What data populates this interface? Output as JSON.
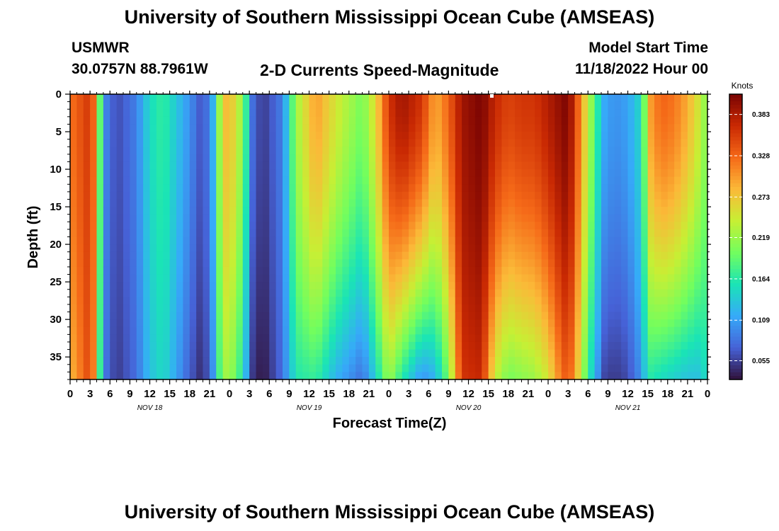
{
  "title": "University of Southern Mississippi Ocean Cube (AMSEAS)",
  "footer_title": "University of Southern Mississippi Ocean Cube (AMSEAS)",
  "station": "USMWR",
  "location": "30.0757N  88.7961W",
  "model_start_label": "Model Start Time",
  "model_start_value": "11/18/2022 Hour 00",
  "chart_data": {
    "type": "heatmap",
    "title": "2-D Currents Speed-Magnitude",
    "xlabel": "Forecast Time(Z)",
    "ylabel": "Depth (ft)",
    "colorbar_label": "Knots",
    "colorbar_ticks": [
      "0.055",
      "0.109",
      "0.164",
      "0.219",
      "0.273",
      "0.328",
      "0.383"
    ],
    "colorbar_range": [
      0.03,
      0.41
    ],
    "x_range_hours": [
      0,
      96
    ],
    "x_tick_labels": [
      "0",
      "3",
      "6",
      "9",
      "12",
      "15",
      "18",
      "21",
      "0",
      "3",
      "6",
      "9",
      "12",
      "15",
      "18",
      "21",
      "0",
      "3",
      "6",
      "9",
      "12",
      "15",
      "18",
      "21",
      "0",
      "3",
      "6",
      "9",
      "12",
      "15",
      "18",
      "21",
      "0"
    ],
    "date_labels": [
      "NOV 18",
      "NOV 19",
      "NOV 20",
      "NOV 21"
    ],
    "y_range": [
      0,
      38
    ],
    "y_ticks": [
      0,
      5,
      10,
      15,
      20,
      25,
      30,
      35
    ],
    "y_inverted": true,
    "colormap": [
      "#30123b",
      "#4662d7",
      "#36aaf9",
      "#1ae4b6",
      "#72fe5e",
      "#c7ef34",
      "#fbb938",
      "#f56918",
      "#c92903",
      "#7a0403"
    ],
    "grid": false,
    "surface_speed_profile": {
      "hour": [
        0,
        3,
        4,
        4.5,
        5.5,
        7,
        10,
        12,
        14,
        18,
        20,
        21.5,
        22.5,
        23.5,
        25,
        26.5,
        27.5,
        29,
        32,
        34,
        37,
        40,
        44,
        46,
        48,
        50,
        53,
        55,
        57,
        59,
        62,
        64,
        66,
        68,
        70,
        72,
        74,
        75,
        76,
        78,
        79.5,
        80,
        82,
        84,
        85.5,
        86.5,
        87.5,
        89,
        91,
        93,
        95,
        96
      ],
      "speed": [
        0.32,
        0.36,
        0.3,
        0.19,
        0.09,
        0.06,
        0.09,
        0.15,
        0.17,
        0.1,
        0.06,
        0.12,
        0.22,
        0.28,
        0.26,
        0.17,
        0.08,
        0.05,
        0.09,
        0.22,
        0.3,
        0.25,
        0.2,
        0.26,
        0.36,
        0.39,
        0.36,
        0.29,
        0.33,
        0.39,
        0.41,
        0.37,
        0.35,
        0.36,
        0.36,
        0.38,
        0.4,
        0.41,
        0.36,
        0.24,
        0.16,
        0.12,
        0.1,
        0.11,
        0.14,
        0.2,
        0.3,
        0.33,
        0.32,
        0.29,
        0.24,
        0.2
      ]
    },
    "bottom_speed_profile": {
      "hour": [
        0,
        3,
        4,
        4.5,
        5.5,
        7,
        10,
        12,
        14,
        18,
        20,
        21.5,
        22.5,
        23.5,
        25,
        26.5,
        27.5,
        29,
        32,
        34,
        37,
        40,
        44,
        46,
        48,
        50,
        53,
        55,
        57,
        59,
        62,
        64,
        66,
        68,
        70,
        72,
        74,
        75,
        76,
        78,
        79.5,
        80,
        82,
        84,
        85.5,
        86.5,
        87.5,
        89,
        91,
        93,
        95,
        96
      ],
      "speed": [
        0.28,
        0.35,
        0.28,
        0.17,
        0.08,
        0.05,
        0.08,
        0.13,
        0.15,
        0.07,
        0.04,
        0.1,
        0.18,
        0.22,
        0.2,
        0.12,
        0.05,
        0.03,
        0.08,
        0.16,
        0.17,
        0.12,
        0.08,
        0.14,
        0.22,
        0.16,
        0.1,
        0.12,
        0.2,
        0.36,
        0.37,
        0.24,
        0.2,
        0.21,
        0.22,
        0.25,
        0.32,
        0.34,
        0.3,
        0.17,
        0.1,
        0.06,
        0.05,
        0.06,
        0.09,
        0.13,
        0.16,
        0.15,
        0.14,
        0.13,
        0.13,
        0.16
      ]
    }
  }
}
